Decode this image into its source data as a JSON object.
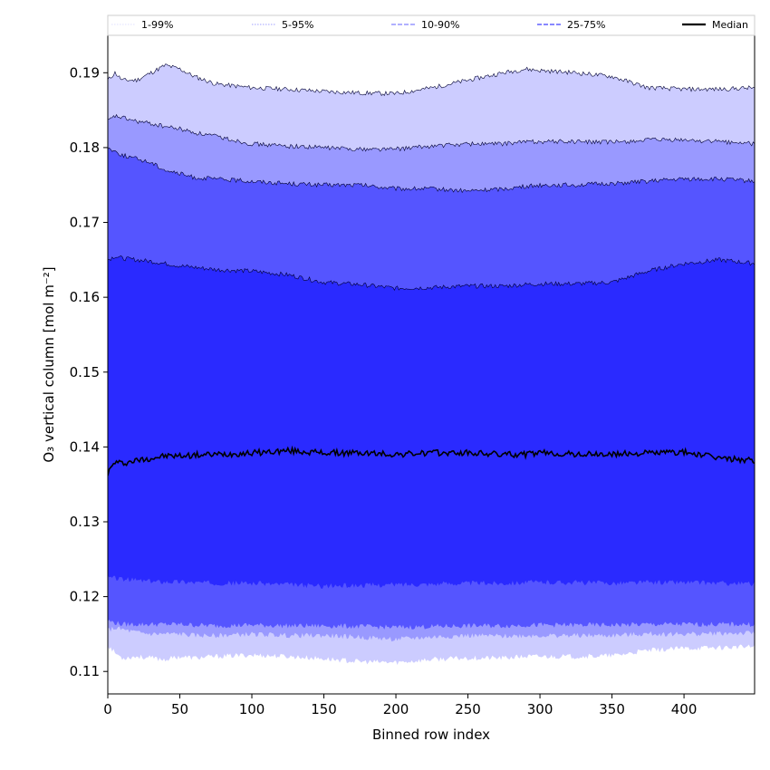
{
  "chart_data": {
    "type": "area",
    "xlabel": "Binned row index",
    "ylabel": "O₃ vertical column [mol m⁻²]",
    "xlim": [
      0,
      449
    ],
    "ylim": [
      0.107,
      0.195
    ],
    "xticks": [
      0,
      50,
      100,
      150,
      200,
      250,
      300,
      350,
      400
    ],
    "yticks": [
      0.11,
      0.12,
      0.13,
      0.14,
      0.15,
      0.16,
      0.17,
      0.18,
      0.19
    ],
    "ytick_labels": [
      "0.11",
      "0.12",
      "0.13",
      "0.14",
      "0.15",
      "0.16",
      "0.17",
      "0.18",
      "0.19"
    ],
    "grid": false,
    "legend_placement": "top, above plot",
    "x": [
      0,
      5,
      10,
      20,
      30,
      40,
      50,
      60,
      75,
      100,
      125,
      150,
      175,
      200,
      225,
      250,
      275,
      290,
      300,
      325,
      350,
      375,
      400,
      425,
      449
    ],
    "bands": [
      {
        "name": "1-99%",
        "color": "#ccccff",
        "upper": [
          0.189,
          0.19,
          0.189,
          0.189,
          0.19,
          0.191,
          0.1905,
          0.1895,
          0.1885,
          0.188,
          0.1878,
          0.1875,
          0.1873,
          0.1872,
          0.188,
          0.189,
          0.19,
          0.1905,
          0.1903,
          0.19,
          0.1895,
          0.188,
          0.1878,
          0.1878,
          0.188
        ],
        "lower": [
          0.1135,
          0.1125,
          0.1118,
          0.112,
          0.1118,
          0.1116,
          0.112,
          0.1118,
          0.112,
          0.1122,
          0.112,
          0.1117,
          0.1113,
          0.1112,
          0.1116,
          0.1118,
          0.1118,
          0.112,
          0.112,
          0.112,
          0.1121,
          0.1128,
          0.1131,
          0.1132,
          0.1133
        ]
      },
      {
        "name": "5-95%",
        "color": "#9999ff",
        "upper": [
          0.1835,
          0.1842,
          0.184,
          0.1835,
          0.1832,
          0.1828,
          0.1825,
          0.182,
          0.1815,
          0.1805,
          0.1802,
          0.18,
          0.1798,
          0.1798,
          0.1802,
          0.1805,
          0.1805,
          0.1808,
          0.1808,
          0.1808,
          0.1807,
          0.181,
          0.181,
          0.1808,
          0.1805
        ],
        "lower": [
          0.1155,
          0.1158,
          0.1156,
          0.1152,
          0.115,
          0.115,
          0.115,
          0.1148,
          0.1148,
          0.115,
          0.1148,
          0.1148,
          0.1146,
          0.1143,
          0.1146,
          0.1148,
          0.1147,
          0.1148,
          0.1148,
          0.1148,
          0.1148,
          0.115,
          0.115,
          0.1151,
          0.1151
        ]
      },
      {
        "name": "10-90%",
        "color": "#5555ff",
        "upper": [
          0.18,
          0.1795,
          0.179,
          0.1785,
          0.178,
          0.177,
          0.1765,
          0.176,
          0.1758,
          0.1755,
          0.1752,
          0.175,
          0.175,
          0.1745,
          0.1745,
          0.1742,
          0.1745,
          0.1748,
          0.175,
          0.175,
          0.1752,
          0.1755,
          0.1758,
          0.1758,
          0.1755
        ],
        "lower": [
          0.1168,
          0.1165,
          0.1163,
          0.1163,
          0.1163,
          0.1163,
          0.1163,
          0.1162,
          0.1161,
          0.1162,
          0.1161,
          0.1161,
          0.116,
          0.1159,
          0.116,
          0.1161,
          0.1161,
          0.1162,
          0.1162,
          0.1162,
          0.1162,
          0.1163,
          0.1163,
          0.1163,
          0.1163
        ]
      },
      {
        "name": "25-75%",
        "color": "#2a2aff",
        "upper": [
          0.165,
          0.1655,
          0.1652,
          0.165,
          0.1648,
          0.1645,
          0.1642,
          0.164,
          0.1637,
          0.1635,
          0.163,
          0.162,
          0.1617,
          0.1612,
          0.1613,
          0.1615,
          0.1615,
          0.1617,
          0.1618,
          0.1618,
          0.162,
          0.1635,
          0.1645,
          0.165,
          0.1645
        ],
        "lower": [
          0.1225,
          0.1225,
          0.1223,
          0.1222,
          0.122,
          0.122,
          0.122,
          0.1219,
          0.1218,
          0.1218,
          0.1216,
          0.1214,
          0.1215,
          0.1216,
          0.1217,
          0.1218,
          0.1218,
          0.1219,
          0.1219,
          0.1219,
          0.1218,
          0.1219,
          0.1219,
          0.1218,
          0.1217
        ]
      }
    ],
    "median": {
      "name": "Median",
      "color": "#000000",
      "values": [
        0.1365,
        0.138,
        0.1378,
        0.1382,
        0.1385,
        0.1388,
        0.1388,
        0.1389,
        0.139,
        0.1392,
        0.1395,
        0.1392,
        0.1392,
        0.139,
        0.1392,
        0.1392,
        0.139,
        0.139,
        0.1392,
        0.139,
        0.139,
        0.1392,
        0.1393,
        0.1385,
        0.1382
      ]
    },
    "legend": [
      {
        "label": "1-99%",
        "color": "#e6e6ff",
        "style": "dotted"
      },
      {
        "label": "5-95%",
        "color": "#b3b3ff",
        "style": "dotted"
      },
      {
        "label": "10-90%",
        "color": "#8080ff",
        "style": "dashed"
      },
      {
        "label": "25-75%",
        "color": "#4040ff",
        "style": "dashed"
      },
      {
        "label": "Median",
        "color": "#000000",
        "style": "solid"
      }
    ]
  }
}
